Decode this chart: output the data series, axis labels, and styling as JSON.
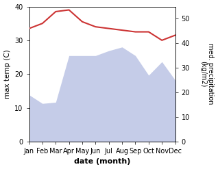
{
  "months": [
    "Jan",
    "Feb",
    "Mar",
    "Apr",
    "May",
    "Jun",
    "Jul",
    "Aug",
    "Sep",
    "Oct",
    "Nov",
    "Dec"
  ],
  "max_temp": [
    33.5,
    35.0,
    38.5,
    39.0,
    35.5,
    34.0,
    33.5,
    33.0,
    32.5,
    32.5,
    30.0,
    31.5
  ],
  "precipitation": [
    19,
    15.5,
    16,
    35,
    35,
    35,
    37,
    38.5,
    35,
    27,
    32.5,
    25
  ],
  "temp_color": "#cc3333",
  "precip_fill_color": "#c5cce8",
  "xlabel": "date (month)",
  "ylabel_left": "max temp (C)",
  "ylabel_right": "med. precipitation\n(kg/m2)",
  "ylim_left": [
    0,
    40
  ],
  "ylim_right": [
    0,
    55
  ],
  "yticks_left": [
    0,
    10,
    20,
    30,
    40
  ],
  "yticks_right": [
    0,
    10,
    20,
    30,
    40,
    50
  ],
  "bg_color": "#ffffff"
}
